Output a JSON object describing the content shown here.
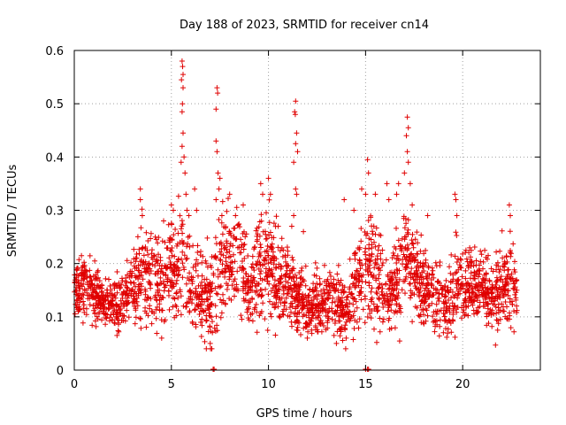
{
  "chart_data": {
    "type": "scatter",
    "title": "Day 188 of 2023, SRMTID for receiver cn14",
    "xlabel": "GPS time / hours",
    "ylabel": "SRMTID / TECUs",
    "xlim": [
      0,
      24
    ],
    "ylim": [
      0,
      0.6
    ],
    "xticks": [
      "0",
      "5",
      "10",
      "15",
      "20"
    ],
    "xtick_values": [
      0,
      5,
      10,
      15,
      20
    ],
    "yticks": [
      "0",
      "0.1",
      "0.2",
      "0.3",
      "0.4",
      "0.5",
      "0.6"
    ],
    "ytick_values": [
      0,
      0.1,
      0.2,
      0.3,
      0.4,
      0.5,
      0.6
    ],
    "grid": true,
    "marker": "plus",
    "series_color": "#e00000",
    "profile": {
      "note": "approximate typical level and spread of the dense point cloud, estimated from the plot",
      "hours": [
        0,
        0.5,
        1,
        1.5,
        2,
        2.5,
        3,
        3.5,
        4,
        4.5,
        5,
        5.5,
        6,
        6.5,
        7,
        7.5,
        8,
        8.5,
        9,
        9.5,
        10,
        10.5,
        11,
        11.5,
        12,
        12.5,
        13,
        13.5,
        14,
        14.5,
        15,
        15.5,
        16,
        16.5,
        17,
        17.5,
        18,
        18.5,
        19,
        19.5,
        20,
        20.5,
        21,
        21.5,
        22,
        22.5,
        22.8
      ],
      "center": [
        0.15,
        0.17,
        0.14,
        0.13,
        0.12,
        0.13,
        0.16,
        0.18,
        0.17,
        0.17,
        0.19,
        0.21,
        0.15,
        0.14,
        0.13,
        0.19,
        0.21,
        0.22,
        0.15,
        0.19,
        0.2,
        0.16,
        0.17,
        0.13,
        0.12,
        0.12,
        0.13,
        0.12,
        0.11,
        0.16,
        0.2,
        0.2,
        0.14,
        0.15,
        0.22,
        0.18,
        0.16,
        0.14,
        0.12,
        0.15,
        0.17,
        0.16,
        0.16,
        0.13,
        0.17,
        0.16,
        0.15
      ],
      "spread": [
        0.03,
        0.04,
        0.03,
        0.03,
        0.03,
        0.03,
        0.05,
        0.06,
        0.05,
        0.05,
        0.06,
        0.07,
        0.05,
        0.05,
        0.05,
        0.07,
        0.06,
        0.06,
        0.05,
        0.07,
        0.07,
        0.05,
        0.05,
        0.04,
        0.04,
        0.04,
        0.04,
        0.04,
        0.04,
        0.06,
        0.07,
        0.07,
        0.04,
        0.05,
        0.07,
        0.05,
        0.05,
        0.05,
        0.04,
        0.05,
        0.05,
        0.04,
        0.04,
        0.04,
        0.05,
        0.05,
        0.04
      ],
      "point_count": 2600
    },
    "outliers": [
      {
        "x": 3.4,
        "y": 0.34
      },
      {
        "x": 3.4,
        "y": 0.32
      },
      {
        "x": 3.5,
        "y": 0.29
      },
      {
        "x": 4.6,
        "y": 0.28
      },
      {
        "x": 5.0,
        "y": 0.31
      },
      {
        "x": 5.1,
        "y": 0.3
      },
      {
        "x": 5.55,
        "y": 0.58
      },
      {
        "x": 5.58,
        "y": 0.57
      },
      {
        "x": 5.6,
        "y": 0.555
      },
      {
        "x": 5.52,
        "y": 0.545
      },
      {
        "x": 5.6,
        "y": 0.53
      },
      {
        "x": 5.57,
        "y": 0.5
      },
      {
        "x": 5.55,
        "y": 0.485
      },
      {
        "x": 5.6,
        "y": 0.445
      },
      {
        "x": 5.55,
        "y": 0.42
      },
      {
        "x": 5.65,
        "y": 0.4
      },
      {
        "x": 5.5,
        "y": 0.39
      },
      {
        "x": 5.7,
        "y": 0.37
      },
      {
        "x": 5.75,
        "y": 0.33
      },
      {
        "x": 5.8,
        "y": 0.3
      },
      {
        "x": 5.9,
        "y": 0.29
      },
      {
        "x": 6.3,
        "y": 0.3
      },
      {
        "x": 6.2,
        "y": 0.34
      },
      {
        "x": 7.35,
        "y": 0.53
      },
      {
        "x": 7.38,
        "y": 0.52
      },
      {
        "x": 7.3,
        "y": 0.49
      },
      {
        "x": 7.3,
        "y": 0.43
      },
      {
        "x": 7.35,
        "y": 0.41
      },
      {
        "x": 7.4,
        "y": 0.37
      },
      {
        "x": 7.5,
        "y": 0.36
      },
      {
        "x": 7.45,
        "y": 0.34
      },
      {
        "x": 7.3,
        "y": 0.32
      },
      {
        "x": 7.6,
        "y": 0.29
      },
      {
        "x": 8.0,
        "y": 0.33
      },
      {
        "x": 8.3,
        "y": 0.29
      },
      {
        "x": 8.7,
        "y": 0.31
      },
      {
        "x": 9.6,
        "y": 0.35
      },
      {
        "x": 9.7,
        "y": 0.33
      },
      {
        "x": 10.0,
        "y": 0.36
      },
      {
        "x": 10.1,
        "y": 0.33
      },
      {
        "x": 10.5,
        "y": 0.27
      },
      {
        "x": 11.4,
        "y": 0.505
      },
      {
        "x": 11.35,
        "y": 0.485
      },
      {
        "x": 11.38,
        "y": 0.48
      },
      {
        "x": 11.45,
        "y": 0.445
      },
      {
        "x": 11.4,
        "y": 0.425
      },
      {
        "x": 11.5,
        "y": 0.41
      },
      {
        "x": 11.3,
        "y": 0.39
      },
      {
        "x": 11.4,
        "y": 0.34
      },
      {
        "x": 11.45,
        "y": 0.33
      },
      {
        "x": 11.3,
        "y": 0.29
      },
      {
        "x": 11.2,
        "y": 0.27
      },
      {
        "x": 11.8,
        "y": 0.26
      },
      {
        "x": 13.9,
        "y": 0.32
      },
      {
        "x": 14.4,
        "y": 0.3
      },
      {
        "x": 14.8,
        "y": 0.34
      },
      {
        "x": 15.1,
        "y": 0.395
      },
      {
        "x": 15.15,
        "y": 0.37
      },
      {
        "x": 15.0,
        "y": 0.33
      },
      {
        "x": 15.5,
        "y": 0.33
      },
      {
        "x": 16.1,
        "y": 0.35
      },
      {
        "x": 16.2,
        "y": 0.32
      },
      {
        "x": 16.6,
        "y": 0.33
      },
      {
        "x": 16.7,
        "y": 0.35
      },
      {
        "x": 17.0,
        "y": 0.37
      },
      {
        "x": 17.15,
        "y": 0.475
      },
      {
        "x": 17.2,
        "y": 0.455
      },
      {
        "x": 17.1,
        "y": 0.44
      },
      {
        "x": 17.15,
        "y": 0.41
      },
      {
        "x": 17.2,
        "y": 0.39
      },
      {
        "x": 17.3,
        "y": 0.35
      },
      {
        "x": 17.4,
        "y": 0.31
      },
      {
        "x": 18.2,
        "y": 0.29
      },
      {
        "x": 19.6,
        "y": 0.33
      },
      {
        "x": 19.65,
        "y": 0.32
      },
      {
        "x": 19.7,
        "y": 0.29
      },
      {
        "x": 22.4,
        "y": 0.31
      },
      {
        "x": 22.45,
        "y": 0.29
      },
      {
        "x": 6.8,
        "y": 0.04
      },
      {
        "x": 7.0,
        "y": 0.05
      },
      {
        "x": 12.0,
        "y": 0.06
      },
      {
        "x": 13.5,
        "y": 0.05
      },
      {
        "x": 14.0,
        "y": 0.06
      },
      {
        "x": 21.8,
        "y": 0.075
      },
      {
        "x": 2.2,
        "y": 0.065
      },
      {
        "x": 4.5,
        "y": 0.06
      }
    ],
    "zero_markers": [
      {
        "x": 7.15,
        "y": 0.0
      },
      {
        "x": 7.2,
        "y": 0.0
      },
      {
        "x": 15.0,
        "y": 0.0
      },
      {
        "x": 15.1,
        "y": 0.0
      },
      {
        "x": 15.15,
        "y": 0.0
      }
    ]
  }
}
